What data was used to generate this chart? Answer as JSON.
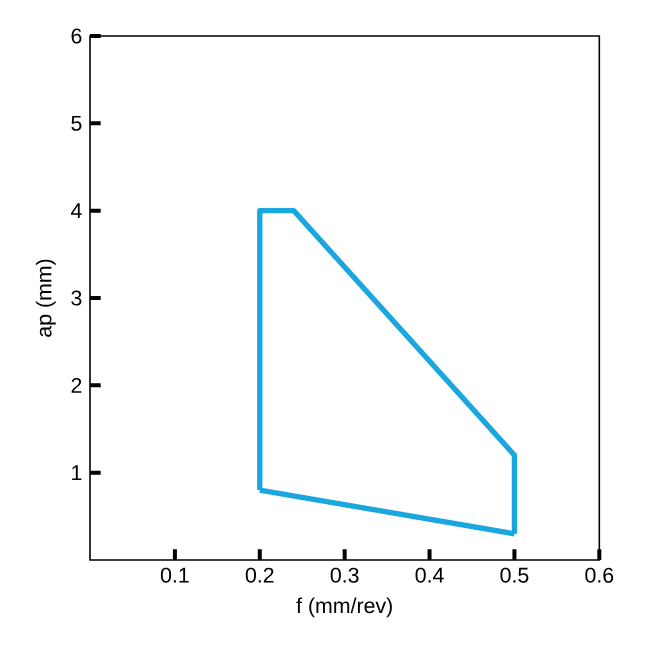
{
  "chart_data": {
    "type": "line",
    "xlabel": "f (mm/rev)",
    "ylabel": "ap (mm)",
    "xlim": [
      0,
      0.6
    ],
    "ylim": [
      0,
      6
    ],
    "xticks": [
      0.1,
      0.2,
      0.3,
      0.4,
      0.5,
      0.6
    ],
    "yticks": [
      1,
      2,
      3,
      4,
      5,
      6
    ],
    "grid": false,
    "marker": "none",
    "line_style": "solid",
    "series": [
      {
        "color": "#1aa7e0",
        "x": [
          0.2,
          0.2,
          0.24,
          0.5,
          0.5
        ],
        "values": [
          0.8,
          4.0,
          4.0,
          1.2,
          0.3
        ]
      },
      {
        "color": "#1aa7e0",
        "x": [
          0.2,
          0.5
        ],
        "values": [
          0.8,
          0.3
        ]
      }
    ]
  }
}
